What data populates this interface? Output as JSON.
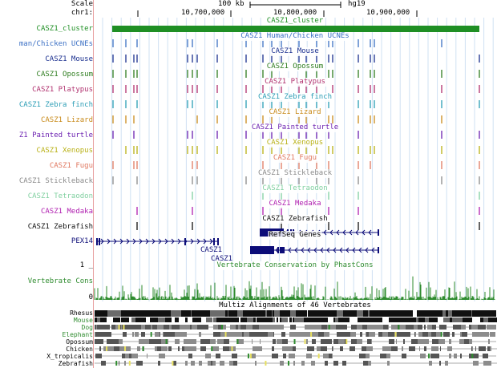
{
  "header": {
    "scale_label": "Scale",
    "chrom_label": "chr1:",
    "scale_text": "100 kb",
    "assembly": "hg19",
    "positions": [
      "10,700,000",
      "10,800,000",
      "10,900,000"
    ]
  },
  "cluster": {
    "label": "CASZ1_cluster",
    "color": "#1f8f24"
  },
  "ucne_tracks": [
    {
      "label": "man/Chicken UCNEs",
      "title": "CASZ1 Human/Chicken UCNEs",
      "color": "#3a6fc4"
    },
    {
      "label": "CASZ1 Mouse",
      "title": "CASZ1 Mouse",
      "color": "#1a2f8f"
    },
    {
      "label": "CASZ1 Opossum",
      "title": "CASZ1 Opossum",
      "color": "#2e7d1f"
    },
    {
      "label": "CASZ1 Platypus",
      "title": "CASZ1 Platypus",
      "color": "#b0306e"
    },
    {
      "label": "CASZ1 Zebra finch",
      "title": "CASZ1 Zebra finch",
      "color": "#2a9db5"
    },
    {
      "label": "CASZ1 Lizard",
      "title": "CASZ1 Lizard",
      "color": "#c88a1a"
    },
    {
      "label": "Z1 Painted turtle",
      "title": "CASZ1 Painted turtle",
      "color": "#6a1fb0"
    },
    {
      "label": "CASZ1 Xenopus",
      "title": "CASZ1 Xenopus",
      "color": "#b8b014"
    },
    {
      "label": "CASZ1 Fugu",
      "title": "CASZ1 Fugu",
      "color": "#e07860"
    },
    {
      "label": "CASZ1 Stickleback",
      "title": "CASZ1 Stickleback",
      "color": "#8a8a8a"
    },
    {
      "label": "CASZ1 Tetraodon",
      "title": "CASZ1 Tetraodon",
      "color": "#80d0a0"
    },
    {
      "label": "CASZ1 Medaka",
      "title": "CASZ1 Medaka",
      "color": "#b020b0"
    },
    {
      "label": "CASZ1 Zebrafish",
      "title": "CASZ1 Zebrafish",
      "color": "#111111"
    }
  ],
  "refseq": {
    "title": "RefSeq Genes",
    "genes": [
      "PEX14",
      "CASZ1",
      "CASZ1"
    ],
    "color": "#0c0c78"
  },
  "conservation": {
    "title": "Vertebrate Conservation by PhastCons",
    "label": "Vertebrate Cons",
    "axis_max": "1 _",
    "axis_min": "0",
    "color": "#2e8b2e"
  },
  "multiz": {
    "title": "Multiz Alignments of 46 Vertebrates",
    "species": [
      "Rhesus",
      "Mouse",
      "Dog",
      "Elephant",
      "Opossum",
      "Chicken",
      "X_tropicalis",
      "Zebrafish"
    ]
  }
}
